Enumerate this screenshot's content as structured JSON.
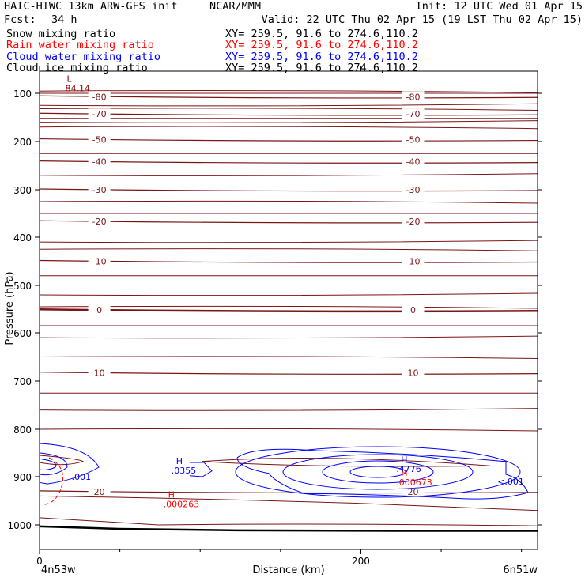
{
  "header": {
    "model": "HAIC-HIWC 13km ARW-GFS init",
    "org": "NCAR/MMM",
    "init": "Init: 12 UTC Wed 01 Apr 15",
    "fcst_label": "Fcst:",
    "fcst_value": "34 h",
    "valid": "Valid: 22 UTC Thu 02 Apr 15 (19 LST Thu 02 Apr 15)"
  },
  "fields": [
    {
      "name": "Snow mixing ratio",
      "xy": "XY= 259.5, 91.6 to 274.6,110.2",
      "color": "#000000"
    },
    {
      "name": "Rain water mixing ratio",
      "xy": "XY= 259.5, 91.6 to 274.6,110.2",
      "color": "#ff0000"
    },
    {
      "name": "Cloud water mixing ratio",
      "xy": "XY= 259.5, 91.6 to 274.6,110.2",
      "color": "#0000ff"
    },
    {
      "name": "Cloud ice mixing ratio",
      "xy": "XY= 259.5, 91.6 to 274.6,110.2",
      "color": "#000000"
    }
  ],
  "chart_data": {
    "type": "contour",
    "xlabel": "Distance (km)",
    "ylabel": "Pressure (hPa)",
    "xlim": [
      0,
      310
    ],
    "ylim": [
      1050,
      50
    ],
    "x_ticks": [
      0,
      200
    ],
    "y_ticks": [
      100,
      200,
      300,
      400,
      500,
      600,
      700,
      800,
      900,
      1000
    ],
    "x_end_labels": {
      "left": "4n53w",
      "right": "6n51w"
    },
    "temperature_isotherms": [
      {
        "label": "-80",
        "p": 107
      },
      {
        "label": "-70",
        "p": 143
      },
      {
        "label": "-50",
        "p": 196
      },
      {
        "label": "-40",
        "p": 242
      },
      {
        "label": "-30",
        "p": 300
      },
      {
        "label": "-20",
        "p": 367
      },
      {
        "label": "-10",
        "p": 450
      },
      {
        "label": "0",
        "p": 552
      },
      {
        "label": "10",
        "p": 683
      },
      {
        "label": "20",
        "p": 931
      }
    ],
    "extrema_labels": [
      {
        "kind": "L",
        "value": "-84.14",
        "x": 17,
        "p": 92,
        "color": "#8b0000"
      },
      {
        "kind": "H",
        "value": ".0355",
        "x": 85,
        "p": 890,
        "color": "#0000ff"
      },
      {
        "kind": "H",
        "value": ".000263",
        "x": 80,
        "p": 960,
        "color": "#ff0000"
      },
      {
        "kind": "H",
        "value": ".4776",
        "x": 225,
        "p": 887,
        "color": "#0000ff"
      },
      {
        "kind": "H",
        "value": ".000673",
        "x": 225,
        "p": 915,
        "color": "#ff0000"
      }
    ],
    "contour_labels": [
      {
        "text": ".001",
        "x": 20,
        "p": 900,
        "color": "#0000ff"
      },
      {
        "text": "<.001",
        "x": 285,
        "p": 910,
        "color": "#0000ff"
      }
    ],
    "legend": "none",
    "grid": false
  }
}
